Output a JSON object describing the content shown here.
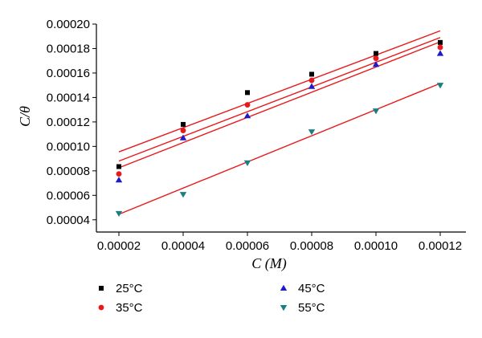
{
  "chart_data": {
    "type": "scatter",
    "xlabel": "C (M)",
    "ylabel": "C/θ",
    "xlim": [
      1.3e-05,
      0.000128
    ],
    "ylim": [
      3e-05,
      0.0002
    ],
    "x_ticks": [
      "0.00002",
      "0.00004",
      "0.00006",
      "0.00008",
      "0.00010",
      "0.00012"
    ],
    "y_ticks": [
      "0.00004",
      "0.00006",
      "0.00008",
      "0.00010",
      "0.00012",
      "0.00014",
      "0.00016",
      "0.00018",
      "0.00020"
    ],
    "grid": false,
    "legend_position": "bottom",
    "x": [
      2e-05,
      4e-05,
      6e-05,
      8e-05,
      0.0001,
      0.00012
    ],
    "series": [
      {
        "name": "25°C",
        "marker": "square",
        "color": "#000000",
        "values": [
          8.35e-05,
          0.000118,
          0.000144,
          0.000159,
          0.000176,
          0.000185
        ],
        "fit": [
          9.55e-05,
          0.0001945
        ]
      },
      {
        "name": "35°C",
        "marker": "circle",
        "color": "#e8191a",
        "values": [
          7.75e-05,
          0.000113,
          0.000134,
          0.000154,
          0.000172,
          0.000181
        ],
        "fit": [
          8.8e-05,
          0.000189
        ]
      },
      {
        "name": "45°C",
        "marker": "triangle-up",
        "color": "#1c1ccc",
        "values": [
          7.25e-05,
          0.000107,
          0.000125,
          0.000149,
          0.000167,
          0.000176
        ],
        "fit": [
          8.25e-05,
          0.0001855
        ]
      },
      {
        "name": "55°C",
        "marker": "triangle-down",
        "color": "#1a7f82",
        "values": [
          4.52e-05,
          6.08e-05,
          8.66e-05,
          0.000112,
          0.000129,
          0.00015
        ],
        "fit": [
          4.45e-05,
          0.0001515
        ]
      }
    ],
    "fit_color": "#e8191a"
  }
}
